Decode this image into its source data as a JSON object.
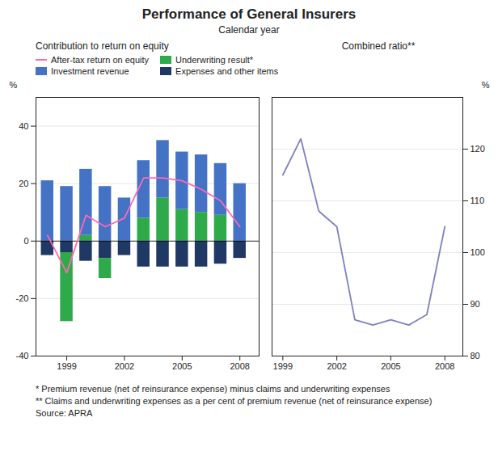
{
  "title": "Performance of General Insurers",
  "subtitle": "Calendar year",
  "annotations": [
    "* Premium revenue (net of reinsurance expense) minus claims and underwriting expenses",
    "** Claims and underwriting expenses as a per cent of premium revenue (net of reinsurance expense)",
    "Source: APRA"
  ],
  "chart_data": [
    {
      "type": "bar",
      "title": "Contribution to return on equity",
      "stacked": true,
      "ylabel": "%",
      "x": [
        1998,
        1999,
        2000,
        2001,
        2002,
        2003,
        2004,
        2005,
        2006,
        2007,
        2008
      ],
      "xlim": [
        1997.4,
        2009.0
      ],
      "xticks": [
        1999,
        2002,
        2005,
        2008
      ],
      "ylim": [
        -40,
        50
      ],
      "yticks": [
        -40,
        -20,
        0,
        20,
        40
      ],
      "grid": true,
      "legend": "top",
      "series": [
        {
          "name": "After-tax return on equity",
          "type": "line",
          "color": "#FF69B4",
          "values": [
            2,
            -11,
            9,
            5,
            8,
            22,
            22,
            21,
            18,
            14,
            5
          ]
        },
        {
          "name": "Underwriting result*",
          "color": "#2EAA4A",
          "values": [
            0,
            -24,
            2,
            -7,
            0,
            8,
            15,
            11,
            10,
            9,
            0
          ]
        },
        {
          "name": "Investment revenue",
          "color": "#4472C4",
          "values": [
            21,
            19,
            23,
            19,
            15,
            20,
            20,
            20,
            20,
            18,
            20
          ]
        },
        {
          "name": "Expenses and other items",
          "color": "#1F3864",
          "values": [
            -5,
            -4,
            -7,
            -6,
            -5,
            -9,
            -9,
            -9,
            -9,
            -8,
            -6
          ]
        }
      ]
    },
    {
      "type": "line",
      "title": "Combined ratio**",
      "ylabel": "%",
      "x": [
        1999,
        2000,
        2001,
        2002,
        2003,
        2004,
        2005,
        2006,
        2007,
        2008
      ],
      "xlim": [
        1998.4,
        2009.0
      ],
      "xticks": [
        1999,
        2002,
        2005,
        2008
      ],
      "ylim": [
        80,
        130
      ],
      "yticks": [
        80,
        90,
        100,
        110,
        120
      ],
      "grid": true,
      "color": "#8080C0",
      "values": [
        115,
        122,
        108,
        105,
        87,
        86,
        87,
        86,
        88,
        105
      ]
    }
  ]
}
